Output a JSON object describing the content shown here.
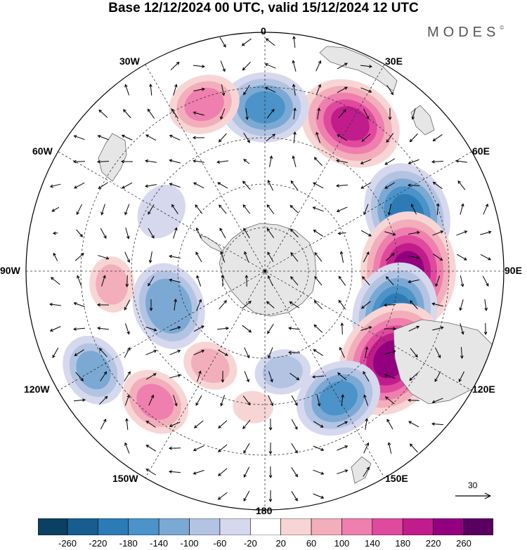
{
  "title": "Base 12/12/2024 00 UTC, valid 15/12/2024 12 UTC",
  "brand": "MODES",
  "brand_mark": "©",
  "map": {
    "projection": "south-polar-stereographic",
    "longitude_labels": {
      "lon_0": "0",
      "lon_30e": "30E",
      "lon_60e": "60E",
      "lon_90e": "90E",
      "lon_120e": "120E",
      "lon_150e": "150E",
      "lon_180": "180",
      "lon_150w": "150W",
      "lon_120w": "120W",
      "lon_90w": "90W",
      "lon_60w": "60W",
      "lon_30w": "30W"
    },
    "reference_vector": "30",
    "colors": {
      "land": "#e6e6e6",
      "coast": "#666666",
      "grid": "#333333"
    },
    "anomaly_cells": [
      {
        "lon": 30,
        "lat": -40,
        "value": 210
      },
      {
        "lon": 68,
        "lat": -45,
        "value": -190
      },
      {
        "lon": 90,
        "lat": -48,
        "value": 220
      },
      {
        "lon": 108,
        "lat": -50,
        "value": -200
      },
      {
        "lon": 125,
        "lat": -45,
        "value": 240
      },
      {
        "lon": 150,
        "lat": -47,
        "value": -160
      },
      {
        "lon": 0,
        "lat": -42,
        "value": -150
      },
      {
        "lon": -20,
        "lat": -38,
        "value": 120
      },
      {
        "lon": -60,
        "lat": -55,
        "value": -60
      },
      {
        "lon": -110,
        "lat": -60,
        "value": -140
      },
      {
        "lon": -140,
        "lat": -40,
        "value": 120
      },
      {
        "lon": -150,
        "lat": -58,
        "value": 90
      },
      {
        "lon": -120,
        "lat": -32,
        "value": -110
      },
      {
        "lon": -95,
        "lat": -45,
        "value": 80
      },
      {
        "lon": 170,
        "lat": -60,
        "value": -70
      },
      {
        "lon": -175,
        "lat": -50,
        "value": 50
      }
    ]
  },
  "colorbar": {
    "ticks": [
      "-260",
      "-220",
      "-180",
      "-140",
      "-100",
      "-60",
      "-20",
      "20",
      "60",
      "100",
      "140",
      "180",
      "220",
      "260"
    ],
    "colors": [
      "#0a4062",
      "#175d8f",
      "#2c7bb6",
      "#4b93c8",
      "#7ba9d4",
      "#b3c4e3",
      "#d6d8ee",
      "#ffffff",
      "#f8d5d5",
      "#f3aebb",
      "#ee7fae",
      "#e04a9e",
      "#c01c8c",
      "#93007f",
      "#5a0060"
    ]
  }
}
